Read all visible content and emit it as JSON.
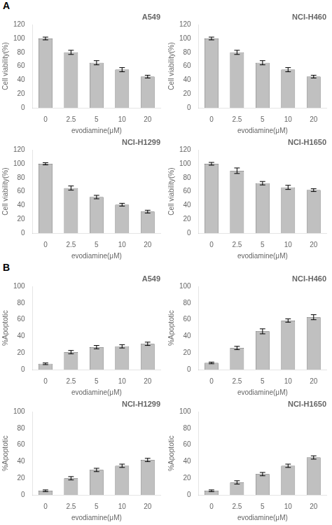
{
  "chart_data": [
    {
      "type": "bar",
      "title": "A549",
      "annotations": [
        "A"
      ],
      "categories": [
        "0",
        "2.5",
        "5",
        "10",
        "20"
      ],
      "values": [
        100,
        80,
        65,
        55,
        45
      ],
      "errors": [
        2,
        3,
        3,
        3,
        2
      ],
      "color": "#c0c0c0",
      "xlabel": "evodiamine(μM)",
      "ylabel": "Cell viability(%)",
      "ylim": [
        0,
        120
      ],
      "yticks": [
        0,
        20,
        40,
        60,
        80,
        100,
        120
      ],
      "grid": false
    },
    {
      "type": "bar",
      "title": "NCI-H460",
      "categories": [
        "0",
        "2.5",
        "5",
        "10",
        "20"
      ],
      "values": [
        100,
        80,
        65,
        55,
        45
      ],
      "errors": [
        2,
        3,
        3,
        3,
        2
      ],
      "color": "#c0c0c0",
      "xlabel": "evodiamine(μM)",
      "ylabel": "Cell viability(%)",
      "ylim": [
        0,
        120
      ],
      "yticks": [
        0,
        20,
        40,
        60,
        80,
        100,
        120
      ],
      "grid": false
    },
    {
      "type": "bar",
      "title": "NCI-H1299",
      "categories": [
        "0",
        "2.5",
        "5",
        "10",
        "20"
      ],
      "values": [
        100,
        65,
        52,
        41,
        31
      ],
      "errors": [
        1.5,
        3,
        2.5,
        2,
        2
      ],
      "color": "#c0c0c0",
      "xlabel": "evodiamine(μM)",
      "ylabel": "Cell viability(%)",
      "ylim": [
        0,
        120
      ],
      "yticks": [
        0,
        20,
        40,
        60,
        80,
        100,
        120
      ],
      "grid": false
    },
    {
      "type": "bar",
      "title": "NCI-H1650",
      "categories": [
        "0",
        "2.5",
        "5",
        "10",
        "20"
      ],
      "values": [
        100,
        90,
        72,
        66,
        62
      ],
      "errors": [
        2,
        4,
        2.5,
        3,
        2
      ],
      "color": "#c0c0c0",
      "xlabel": "evodiamine(μM)",
      "ylabel": "Cell viability(%)",
      "ylim": [
        0,
        120
      ],
      "yticks": [
        0,
        20,
        40,
        60,
        80,
        100,
        120
      ],
      "grid": false
    },
    {
      "type": "bar",
      "title": "A549",
      "annotations": [
        "B"
      ],
      "categories": [
        "0",
        "2.5",
        "5",
        "10",
        "20"
      ],
      "values": [
        7,
        21,
        27,
        28,
        31
      ],
      "errors": [
        1,
        2,
        2,
        2,
        2
      ],
      "color": "#c0c0c0",
      "xlabel": "evodiamine(μM)",
      "ylabel": "%Apoptotic",
      "ylim": [
        0,
        100
      ],
      "yticks": [
        0,
        20,
        40,
        60,
        80,
        100
      ],
      "grid": false
    },
    {
      "type": "bar",
      "title": "NCI-H460",
      "categories": [
        "0",
        "2.5",
        "5",
        "10",
        "20"
      ],
      "values": [
        8,
        26,
        46,
        59,
        63
      ],
      "errors": [
        1,
        2,
        3,
        2,
        3
      ],
      "color": "#c0c0c0",
      "xlabel": "evodiamine(μM)",
      "ylabel": "%Apoptotic",
      "ylim": [
        0,
        100
      ],
      "yticks": [
        0,
        20,
        40,
        60,
        80,
        100
      ],
      "grid": false
    },
    {
      "type": "bar",
      "title": "NCI-H1299",
      "categories": [
        "0",
        "2.5",
        "5",
        "10",
        "20"
      ],
      "values": [
        5,
        20,
        30,
        35,
        42
      ],
      "errors": [
        1,
        2,
        2,
        2,
        2
      ],
      "color": "#c0c0c0",
      "xlabel": "evodiamine(μM)",
      "ylabel": "%Apoptotic",
      "ylim": [
        0,
        100
      ],
      "yticks": [
        0,
        20,
        40,
        60,
        80,
        100
      ],
      "grid": false
    },
    {
      "type": "bar",
      "title": "NCI-H1650",
      "categories": [
        "0",
        "2.5",
        "5",
        "10",
        "20"
      ],
      "values": [
        5,
        15,
        25,
        35,
        45
      ],
      "errors": [
        1,
        2,
        2,
        2,
        2
      ],
      "color": "#c0c0c0",
      "xlabel": "evodiamine(μM)",
      "ylabel": "%Apoptotic",
      "ylim": [
        0,
        100
      ],
      "yticks": [
        0,
        20,
        40,
        60,
        80,
        100
      ],
      "grid": false
    }
  ]
}
